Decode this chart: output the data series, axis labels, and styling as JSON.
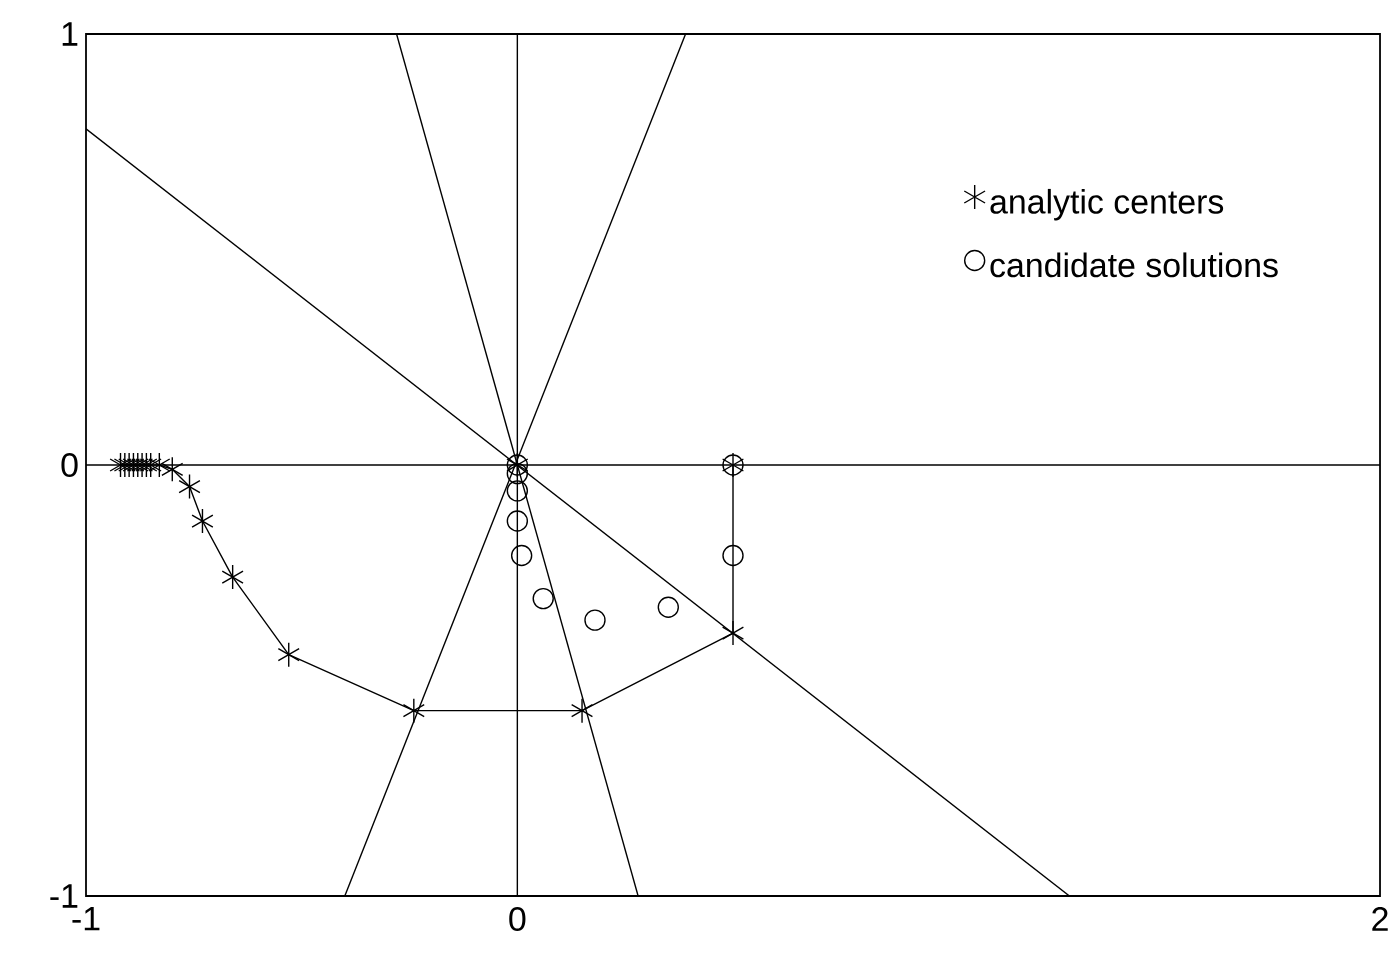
{
  "chart_data": {
    "type": "line",
    "xlim": [
      -1,
      2
    ],
    "ylim": [
      -1,
      1
    ],
    "xticks": [
      -1,
      0,
      2
    ],
    "yticks": [
      -1,
      0,
      1
    ],
    "legend": "top right",
    "series": [
      {
        "color": "#000000",
        "marker": "none",
        "x": [
          0,
          0
        ],
        "values": [
          -1,
          1
        ]
      },
      {
        "color": "#000000",
        "marker": "none",
        "x": [
          -1,
          2
        ],
        "values": [
          0,
          0
        ]
      },
      {
        "color": "#000000",
        "marker": "none",
        "x": [
          -1,
          1.28
        ],
        "values": [
          0.78,
          -1
        ]
      },
      {
        "color": "#000000",
        "marker": "none",
        "x": [
          -0.28,
          0.28
        ],
        "values": [
          1,
          -1
        ]
      },
      {
        "color": "#000000",
        "marker": "none",
        "x": [
          -0.4,
          0.39
        ],
        "values": [
          -1,
          1
        ]
      },
      {
        "name": "analytic centers",
        "color": "#000000",
        "marker": "cross",
        "x": [
          -0.92,
          -0.91,
          -0.9,
          -0.89,
          -0.88,
          -0.87,
          -0.86,
          -0.85,
          -0.83,
          -0.8,
          -0.76,
          -0.73,
          -0.66,
          -0.53,
          -0.24,
          0.15,
          0.5,
          0.5
        ],
        "values": [
          0,
          0,
          0,
          0,
          0,
          0,
          0,
          0,
          0,
          -0.01,
          -0.05,
          -0.13,
          -0.26,
          -0.44,
          -0.57,
          -0.57,
          -0.39,
          0
        ]
      },
      {
        "type": "scatter",
        "color": "#000000",
        "marker": "cross",
        "x": [
          0
        ],
        "values": [
          0
        ]
      },
      {
        "name": "candidate solutions",
        "type": "scatter",
        "color": "#000000",
        "marker": "circle",
        "x": [
          0,
          0,
          0,
          0,
          0.01,
          0.06,
          0.18,
          0.35,
          0.5,
          0.5
        ],
        "values": [
          0,
          -0.02,
          -0.06,
          -0.13,
          -0.21,
          -0.31,
          -0.36,
          -0.33,
          -0.21,
          0
        ]
      }
    ]
  }
}
